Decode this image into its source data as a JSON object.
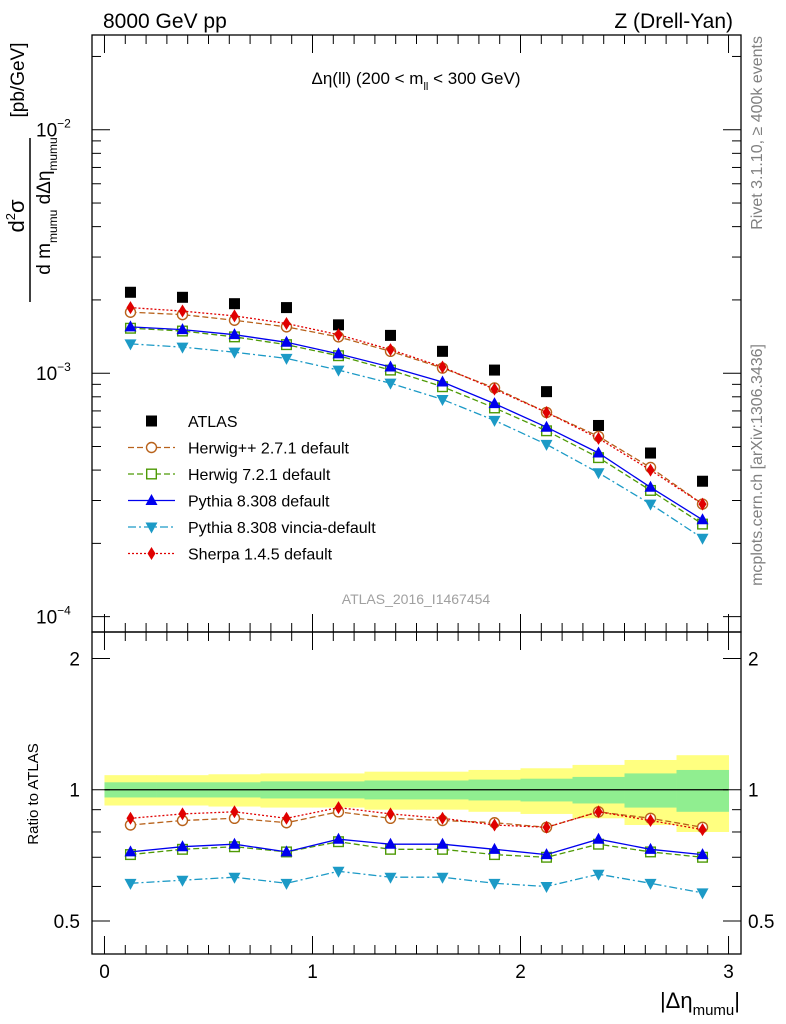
{
  "header": {
    "left": "8000 GeV pp",
    "right": "Z (Drell-Yan)"
  },
  "side_labels": {
    "rivet": "Rivet 3.1.10, ≥ 400k events",
    "mcplots": "mcplots.cern.ch [arXiv:1306.3436]"
  },
  "analysis_id": "ATLAS_2016_I1467454",
  "colors": {
    "ATLAS": "#000000",
    "Herwig++ 2.7.1 default": "#b8621b",
    "Herwig 7.2.1 default": "#4e9a06",
    "Pythia 8.308 default": "#0000ee",
    "Pythia 8.308 vincia-default": "#1c9ac6",
    "Sherpa 1.4.5 default": "#e00000",
    "band_inner": "#90ee90",
    "band_outer": "#ffff80"
  },
  "chart_data": [
    {
      "type": "scatter",
      "panel": "main",
      "title": "Δη(ll) (200 < m_ll < 300 GeV)",
      "title_parts": {
        "pre": "Δη(ll) (200 < m",
        "sub": "ll",
        "post": " < 300 GeV)"
      },
      "ylabel": "d²σ / d m_mumu dΔη_mumu [pb/GeV]",
      "ylabel_parts": {
        "num_base": "d",
        "num_sup": "2",
        "num_sigma": "σ",
        "den": "d m",
        "den_sub": "mumu",
        "den_mid": " dΔη",
        "den_sub2": "mumu",
        "unit": "[pb/GeV]"
      },
      "yscale": "log",
      "ylim": [
        8.65e-05,
        0.0245
      ],
      "xlim": [
        -0.06,
        3.06
      ],
      "ytick_labels": [
        {
          "base": "10",
          "exp": "−4",
          "value": 0.0001
        },
        {
          "base": "10",
          "exp": "−3",
          "value": 0.001
        },
        {
          "base": "10",
          "exp": "−2",
          "value": 0.01
        }
      ],
      "x": [
        0.125,
        0.375,
        0.625,
        0.875,
        1.125,
        1.375,
        1.625,
        1.875,
        2.125,
        2.375,
        2.625,
        2.875
      ],
      "series": [
        {
          "name": "ATLAS",
          "marker": "square",
          "line": "none",
          "values": [
            0.00215,
            0.00205,
            0.00193,
            0.00186,
            0.00158,
            0.00143,
            0.00123,
            0.00103,
            0.00084,
            0.00061,
            0.00047,
            0.00036
          ]
        },
        {
          "name": "Herwig++ 2.7.1 default",
          "marker": "circle-open",
          "line": "dashed",
          "values": [
            0.00178,
            0.00174,
            0.00165,
            0.00155,
            0.00141,
            0.00123,
            0.00105,
            0.00087,
            0.00069,
            0.00055,
            0.00041,
            0.00029
          ]
        },
        {
          "name": "Herwig 7.2.1 default",
          "marker": "square-open",
          "line": "dashed",
          "values": [
            0.00153,
            0.00149,
            0.00141,
            0.00131,
            0.00118,
            0.00103,
            0.00088,
            0.00072,
            0.00058,
            0.00045,
            0.00033,
            0.00024
          ]
        },
        {
          "name": "Pythia 8.308 default",
          "marker": "triangle-up",
          "line": "solid",
          "values": [
            0.00155,
            0.00151,
            0.00144,
            0.00134,
            0.0012,
            0.00106,
            0.00092,
            0.00075,
            0.0006,
            0.00047,
            0.00034,
            0.00025
          ]
        },
        {
          "name": "Pythia 8.308 vincia-default",
          "marker": "triangle-down",
          "line": "dashdot",
          "values": [
            0.00132,
            0.00128,
            0.00122,
            0.00115,
            0.00103,
            0.00091,
            0.00078,
            0.00064,
            0.00051,
            0.00039,
            0.00029,
            0.00021
          ]
        },
        {
          "name": "Sherpa 1.4.5 default",
          "marker": "diamond",
          "line": "dotted",
          "values": [
            0.00186,
            0.0018,
            0.00172,
            0.0016,
            0.00144,
            0.00125,
            0.00106,
            0.00086,
            0.00069,
            0.00054,
            0.0004,
            0.00029
          ]
        }
      ],
      "legend": [
        "ATLAS",
        "Herwig++ 2.7.1 default",
        "Herwig 7.2.1 default",
        "Pythia 8.308 default",
        "Pythia 8.308 vincia-default",
        "Sherpa 1.4.5 default"
      ],
      "legend_position": "center-left"
    },
    {
      "type": "line",
      "panel": "ratio",
      "ylabel": "Ratio to ATLAS",
      "xlabel": "|Δη_mumu|",
      "xlabel_parts": {
        "main": "|Δη",
        "sub": "mumu",
        "end": "|"
      },
      "ylim": [
        0.42,
        2.3
      ],
      "xlim": [
        -0.06,
        3.06
      ],
      "ytick_labels": [
        0.5,
        1,
        2
      ],
      "xtick_labels": [
        0,
        1,
        2,
        3
      ],
      "reference_line": 1,
      "x": [
        0.125,
        0.375,
        0.625,
        0.875,
        1.125,
        1.375,
        1.625,
        1.875,
        2.125,
        2.375,
        2.625,
        2.875
      ],
      "x_edges": [
        0,
        0.25,
        0.5,
        0.75,
        1.0,
        1.25,
        1.5,
        1.75,
        2.0,
        2.25,
        2.5,
        2.75,
        3.0
      ],
      "band_inner": [
        0.04,
        0.04,
        0.04,
        0.045,
        0.045,
        0.05,
        0.05,
        0.055,
        0.06,
        0.07,
        0.09,
        0.11
      ],
      "band_outer": [
        0.08,
        0.08,
        0.085,
        0.09,
        0.09,
        0.1,
        0.1,
        0.11,
        0.12,
        0.14,
        0.17,
        0.2
      ],
      "series": [
        {
          "name": "Herwig++ 2.7.1 default",
          "marker": "circle-open",
          "line": "dashed",
          "values": [
            0.83,
            0.85,
            0.86,
            0.84,
            0.89,
            0.86,
            0.85,
            0.84,
            0.82,
            0.89,
            0.86,
            0.82
          ]
        },
        {
          "name": "Herwig 7.2.1 default",
          "marker": "square-open",
          "line": "dashed",
          "values": [
            0.71,
            0.73,
            0.74,
            0.72,
            0.76,
            0.73,
            0.73,
            0.71,
            0.7,
            0.75,
            0.72,
            0.7
          ]
        },
        {
          "name": "Pythia 8.308 default",
          "marker": "triangle-up",
          "line": "solid",
          "values": [
            0.72,
            0.74,
            0.75,
            0.72,
            0.77,
            0.75,
            0.75,
            0.73,
            0.71,
            0.77,
            0.73,
            0.71
          ]
        },
        {
          "name": "Pythia 8.308 vincia-default",
          "marker": "triangle-down",
          "line": "dashdot",
          "values": [
            0.61,
            0.62,
            0.63,
            0.61,
            0.65,
            0.63,
            0.63,
            0.61,
            0.6,
            0.64,
            0.61,
            0.58
          ]
        },
        {
          "name": "Sherpa 1.4.5 default",
          "marker": "diamond",
          "line": "dotted",
          "values": [
            0.86,
            0.88,
            0.89,
            0.86,
            0.91,
            0.88,
            0.86,
            0.83,
            0.82,
            0.89,
            0.85,
            0.81
          ]
        }
      ]
    }
  ]
}
